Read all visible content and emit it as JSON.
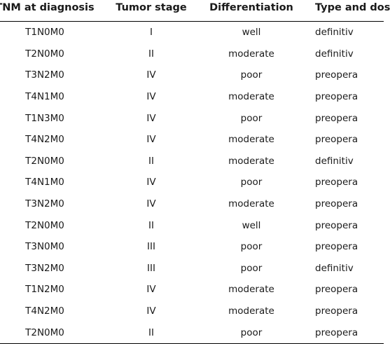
{
  "table": {
    "headers": [
      "TNM at diagnosis",
      "Tumor stage",
      "Differentiation",
      "Type and dos"
    ],
    "rows": [
      [
        "T1N0M0",
        "I",
        "well",
        "definitiv"
      ],
      [
        "T2N0M0",
        "II",
        "moderate",
        "definitiv"
      ],
      [
        "T3N2M0",
        "IV",
        "poor",
        "preopera"
      ],
      [
        "T4N1M0",
        "IV",
        "moderate",
        "preopera"
      ],
      [
        "T1N3M0",
        "IV",
        "poor",
        "preopera"
      ],
      [
        "T4N2M0",
        "IV",
        "moderate",
        "preopera"
      ],
      [
        "T2N0M0",
        "II",
        "moderate",
        "definitiv"
      ],
      [
        "T4N1M0",
        "IV",
        "poor",
        "preopera"
      ],
      [
        "T3N2M0",
        "IV",
        "moderate",
        "preopera"
      ],
      [
        "T2N0M0",
        "II",
        "well",
        "preopera"
      ],
      [
        "T3N0M0",
        "III",
        "poor",
        "preopera"
      ],
      [
        "T3N2M0",
        "III",
        "poor",
        "definitiv"
      ],
      [
        "T1N2M0",
        "IV",
        "moderate",
        "preopera"
      ],
      [
        "T4N2M0",
        "IV",
        "moderate",
        "preopera"
      ],
      [
        "T2N0M0",
        "II",
        "poor",
        "preopera"
      ]
    ]
  }
}
